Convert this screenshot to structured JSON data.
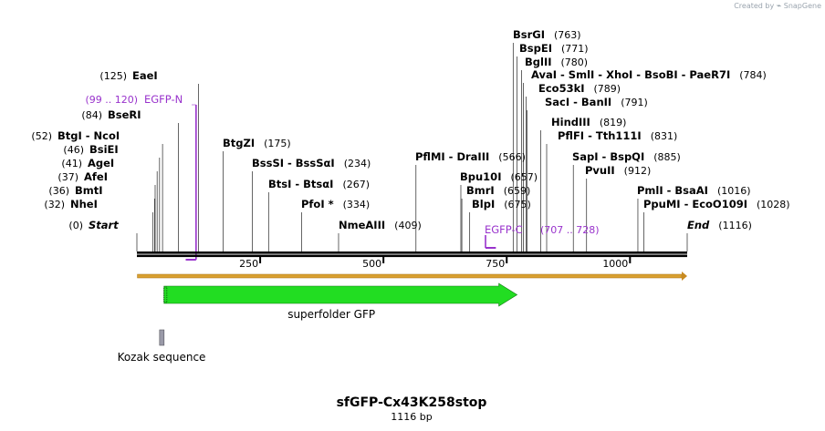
{
  "credit": {
    "prefix": "Created by",
    "brand": "SnapGene"
  },
  "title": "sfGFP-Cx43K258stop",
  "length_label": "1116 bp",
  "sequence_length": 1116,
  "colors": {
    "backbone": "#000000",
    "ruler": "#000000",
    "orf": "#d9a030",
    "gfp": "#22dd22",
    "kozak": "#9a9aa8",
    "primer": "#9933cc",
    "enzyme": "#000000"
  },
  "features": [
    {
      "name": "superfolder GFP",
      "type": "cds",
      "start": 55,
      "end": 771,
      "strand": "+"
    },
    {
      "name": "Kozak sequence",
      "type": "misc",
      "start": 45,
      "end": 54
    }
  ],
  "orf": {
    "start": 1,
    "end": 1116
  },
  "ticks": [
    {
      "pos": 250,
      "label": "250"
    },
    {
      "pos": 500,
      "label": "500"
    },
    {
      "pos": 750,
      "label": "750"
    },
    {
      "pos": 1000,
      "label": "1000"
    }
  ],
  "primers": [
    {
      "name": "EGFP-N",
      "range": "(99 .. 120)",
      "start": 99,
      "end": 120,
      "strand": "-",
      "cut": 120
    },
    {
      "name": "EGFP-C",
      "range": "(707 .. 728)",
      "start": 707,
      "end": 728,
      "strand": "+",
      "cut": 707
    }
  ],
  "sites": [
    {
      "name": "Start",
      "pos": "(0)",
      "cut": 0,
      "style": "end",
      "side": "left"
    },
    {
      "name": "NheI",
      "pos": "(32)",
      "cut": 32,
      "style": "unique",
      "side": "left"
    },
    {
      "name": "BmtI",
      "pos": "(36)",
      "cut": 36,
      "style": "unique",
      "side": "left"
    },
    {
      "name": "AfeI",
      "pos": "(37)",
      "cut": 37,
      "style": "unique",
      "side": "left"
    },
    {
      "name": "AgeI",
      "pos": "(41)",
      "cut": 41,
      "style": "unique",
      "side": "left"
    },
    {
      "name": "BsiEI",
      "pos": "(46)",
      "cut": 46,
      "style": "unique",
      "side": "left"
    },
    {
      "name": "BtgI  - NcoI",
      "pos": "(52)",
      "cut": 52,
      "style": "unique",
      "side": "left"
    },
    {
      "name": "BseRI",
      "pos": "(84)",
      "cut": 84,
      "style": "unique",
      "side": "left"
    },
    {
      "name": "EaeI",
      "pos": "(125)",
      "cut": 125,
      "style": "unique",
      "side": "left"
    },
    {
      "name": "BtgZI",
      "pos": "(175)",
      "cut": 175,
      "style": "unique",
      "side": "right"
    },
    {
      "name": "BssSI  - BssSαI",
      "pos": "(234)",
      "cut": 234,
      "style": "unique",
      "side": "right"
    },
    {
      "name": "BtsI  - BtsαI",
      "pos": "(267)",
      "cut": 267,
      "style": "unique",
      "side": "right"
    },
    {
      "name": "PfoI *",
      "pos": "(334)",
      "cut": 334,
      "style": "unique",
      "side": "right"
    },
    {
      "name": "NmeAIII",
      "pos": "(409)",
      "cut": 409,
      "style": "unique",
      "side": "right"
    },
    {
      "name": "PflMI  - DraIII",
      "pos": "(566)",
      "cut": 566,
      "style": "unique",
      "side": "right"
    },
    {
      "name": "Bpu10I",
      "pos": "(657)",
      "cut": 657,
      "style": "unique",
      "side": "right"
    },
    {
      "name": "BmrI",
      "pos": "(659)",
      "cut": 659,
      "style": "unique",
      "side": "right"
    },
    {
      "name": "BlpI",
      "pos": "(675)",
      "cut": 675,
      "style": "unique",
      "side": "right"
    },
    {
      "name": "BsrGI",
      "pos": "(763)",
      "cut": 763,
      "style": "unique",
      "side": "right"
    },
    {
      "name": "BspEI",
      "pos": "(771)",
      "cut": 771,
      "style": "unique",
      "side": "right"
    },
    {
      "name": "BglII",
      "pos": "(780)",
      "cut": 780,
      "style": "unique",
      "side": "right"
    },
    {
      "name": "AvaI  - SmlI  - XhoI  - BsoBI  - PaeR7I",
      "pos": "(784)",
      "cut": 784,
      "style": "unique",
      "side": "right"
    },
    {
      "name": "Eco53kI",
      "pos": "(789)",
      "cut": 789,
      "style": "unique",
      "side": "right"
    },
    {
      "name": "SacI  - BanII",
      "pos": "(791)",
      "cut": 791,
      "style": "unique",
      "side": "right"
    },
    {
      "name": "HindIII",
      "pos": "(819)",
      "cut": 819,
      "style": "unique",
      "side": "right"
    },
    {
      "name": "PflFI  - Tth111I",
      "pos": "(831)",
      "cut": 831,
      "style": "unique",
      "side": "right"
    },
    {
      "name": "SapI  - BspQI",
      "pos": "(885)",
      "cut": 885,
      "style": "unique",
      "side": "right"
    },
    {
      "name": "PvuII",
      "pos": "(912)",
      "cut": 912,
      "style": "unique",
      "side": "right"
    },
    {
      "name": "PmlI  - BsaAI",
      "pos": "(1016)",
      "cut": 1016,
      "style": "unique",
      "side": "right"
    },
    {
      "name": "PpuMI  - EcoO109I",
      "pos": "(1028)",
      "cut": 1028,
      "style": "unique",
      "side": "right"
    },
    {
      "name": "End",
      "pos": "(1116)",
      "cut": 1116,
      "style": "end",
      "side": "right"
    }
  ]
}
